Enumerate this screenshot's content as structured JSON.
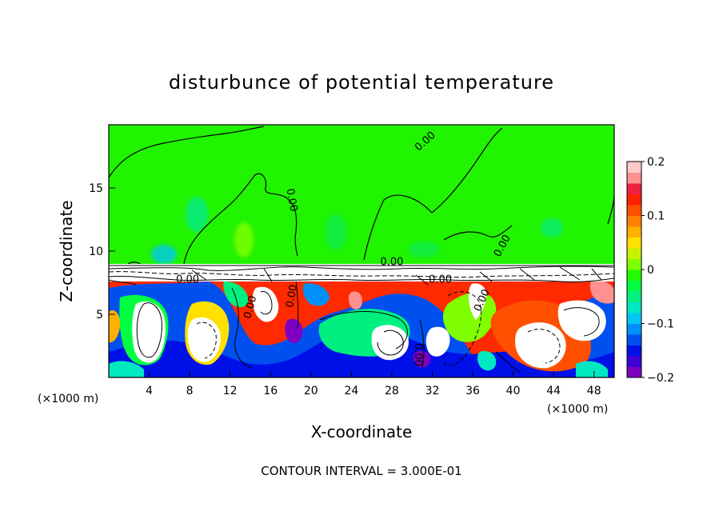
{
  "chart_data": {
    "type": "heatmap",
    "title": "disturbunce of potential temperature",
    "xlabel": "X-coordinate",
    "ylabel": "Z-coordinate",
    "x_unit": "(×1000 m)",
    "x_unit_right": "(×1000 m)",
    "xlim": [
      0,
      50
    ],
    "ylim": [
      0,
      20
    ],
    "x_ticks": [
      4,
      8,
      12,
      16,
      20,
      24,
      28,
      32,
      36,
      40,
      44,
      48
    ],
    "x_tick_labels": [
      "4",
      "8",
      "12",
      "16",
      "20",
      "24",
      "28",
      "32",
      "36",
      "40",
      "44",
      "48"
    ],
    "y_ticks": [
      5,
      10,
      15
    ],
    "y_tick_labels": [
      "5",
      "10",
      "15"
    ],
    "colorbar": {
      "range": [
        -0.2,
        0.2
      ],
      "ticks": [
        -0.2,
        -0.1,
        0,
        0.1,
        0.2
      ],
      "tick_labels": [
        "−0.2",
        "−0.1",
        "0",
        "0.1",
        "0.2"
      ],
      "colors": [
        "#7f00c0",
        "#4000d8",
        "#0010e8",
        "#0050f0",
        "#0090f8",
        "#00c8f0",
        "#00e8c0",
        "#00f080",
        "#00ff40",
        "#20ff00",
        "#80ff00",
        "#c8f000",
        "#ffe000",
        "#ffb000",
        "#ff8000",
        "#ff5000",
        "#ff2000",
        "#f02040",
        "#ff9090",
        "#ffc8c8"
      ]
    },
    "contour_labels": [
      {
        "text": "0.00",
        "x": 31.5,
        "z": 18.5,
        "rotate": -42
      },
      {
        "text": "0.00",
        "x": 17.8,
        "z": 14.0,
        "rotate": 80
      },
      {
        "text": "0.00",
        "x": 39.2,
        "z": 10.3,
        "rotate": -62
      },
      {
        "text": "0.00",
        "x": 28.0,
        "z": 8.9,
        "rotate": 0
      },
      {
        "text": "0.00",
        "x": 7.8,
        "z": 7.5,
        "rotate": 0
      },
      {
        "text": "0.00",
        "x": 32.8,
        "z": 7.5,
        "rotate": 0
      },
      {
        "text": "0.00",
        "x": 14.3,
        "z": 5.5,
        "rotate": -75
      },
      {
        "text": "0.00",
        "x": 18.4,
        "z": 6.4,
        "rotate": -80
      },
      {
        "text": "0.00",
        "x": 37.2,
        "z": 6.0,
        "rotate": -65
      },
      {
        "text": "0.00",
        "x": 30.3,
        "z": 1.8,
        "rotate": 90
      }
    ],
    "contour_interval_text": "CONTOUR INTERVAL = 3.000E-01"
  }
}
